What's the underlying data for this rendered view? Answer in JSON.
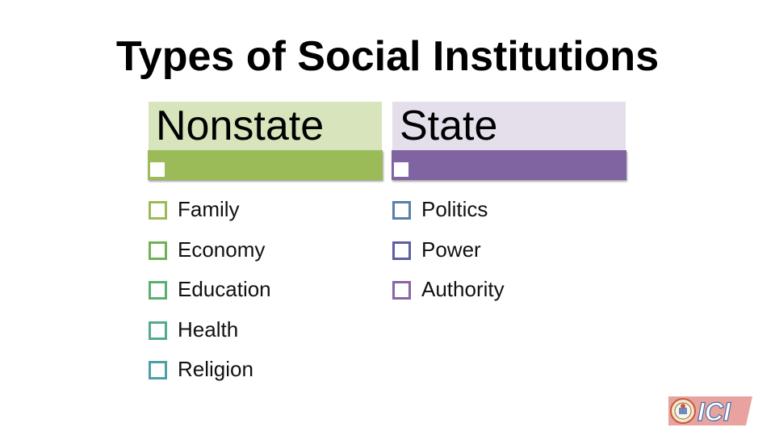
{
  "slide": {
    "title": "Types of Social Institutions"
  },
  "columns": [
    {
      "header": "Nonstate",
      "header_bg": "#d7e4bc",
      "bar_color": "#9bbb59",
      "items": [
        {
          "label": "Family",
          "color": "#9bbb59"
        },
        {
          "label": "Economy",
          "color": "#6fb157"
        },
        {
          "label": "Education",
          "color": "#5aaf6f"
        },
        {
          "label": "Health",
          "color": "#55ab8a"
        },
        {
          "label": "Religion",
          "color": "#4f9ea3"
        }
      ]
    },
    {
      "header": "State",
      "header_bg": "#e5dfec",
      "bar_color": "#8064a2",
      "items": [
        {
          "label": "Politics",
          "color": "#5a7fa8"
        },
        {
          "label": "Power",
          "color": "#5e5ea2"
        },
        {
          "label": "Authority",
          "color": "#8a64a6"
        }
      ]
    }
  ],
  "logo": {
    "text": "ICI",
    "seal_icon": "emblem-seal-icon"
  }
}
